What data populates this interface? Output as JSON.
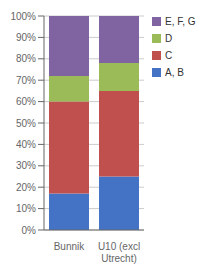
{
  "chart_data": {
    "type": "bar",
    "stacked": true,
    "categories": [
      "Bunnik",
      "U10 (excl\nUtrecht)"
    ],
    "series": [
      {
        "name": "A, B",
        "color": "#4472C4",
        "values": [
          17,
          25
        ]
      },
      {
        "name": "C",
        "color": "#C0504D",
        "values": [
          43,
          40
        ]
      },
      {
        "name": "D",
        "color": "#9BBB59",
        "values": [
          12,
          13
        ]
      },
      {
        "name": "E, F, G",
        "color": "#8064A2",
        "values": [
          28,
          22
        ]
      }
    ],
    "ylim": [
      0,
      100
    ],
    "yticks": [
      {
        "value": 0,
        "label": "0%"
      },
      {
        "value": 10,
        "label": "10%"
      },
      {
        "value": 20,
        "label": "20%"
      },
      {
        "value": 30,
        "label": "30%"
      },
      {
        "value": 40,
        "label": "40%"
      },
      {
        "value": 50,
        "label": "50%"
      },
      {
        "value": 60,
        "label": "60%"
      },
      {
        "value": 70,
        "label": "70%"
      },
      {
        "value": 80,
        "label": "80%"
      },
      {
        "value": 90,
        "label": "90%"
      },
      {
        "value": 100,
        "label": "100%"
      }
    ],
    "grid": true,
    "legend": "right"
  }
}
